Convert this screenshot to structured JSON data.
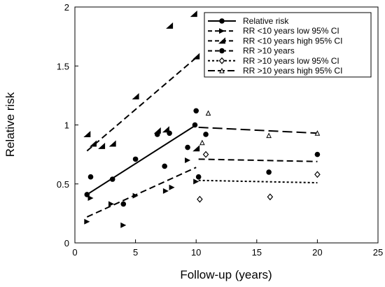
{
  "chart_data": {
    "type": "scatter",
    "xlabel": "Follow-up (years)",
    "ylabel": "Relative risk",
    "xlim": [
      0,
      25
    ],
    "ylim": [
      0,
      2
    ],
    "xticks": [
      "0",
      "5",
      "10",
      "15",
      "20",
      "25"
    ],
    "yticks": [
      "0",
      "0.5",
      "1",
      "1.5",
      "2"
    ],
    "legend_position": "top-right",
    "series": [
      {
        "name": "Relative risk",
        "marker": "circle",
        "line": "solid",
        "points": [
          [
            1,
            0.41
          ],
          [
            1.3,
            0.56
          ],
          [
            3.1,
            0.54
          ],
          [
            4,
            0.33
          ],
          [
            5,
            0.71
          ],
          [
            6.8,
            0.92
          ],
          [
            7.4,
            0.65
          ],
          [
            7.8,
            0.93
          ],
          [
            9.3,
            0.81
          ],
          [
            9.9,
            1.0
          ],
          [
            10,
            1.12
          ],
          [
            10.2,
            0.56
          ],
          [
            10.8,
            0.92
          ]
        ],
        "fit": [
          [
            1,
            0.41
          ],
          [
            10,
            1.0
          ]
        ]
      },
      {
        "name": "RR <10 years low 95% CI",
        "marker": "flag",
        "line": "dashed",
        "points": [
          [
            1,
            0.18
          ],
          [
            1.3,
            0.38
          ],
          [
            3,
            0.33
          ],
          [
            4,
            0.15
          ],
          [
            5,
            0.4
          ],
          [
            7.5,
            0.44
          ],
          [
            8,
            0.47
          ],
          [
            9.3,
            0.7
          ],
          [
            10,
            0.52
          ]
        ],
        "fit": [
          [
            1,
            0.22
          ],
          [
            10,
            0.64
          ]
        ]
      },
      {
        "name": "RR <10 years high 95% CI",
        "marker": "triangle",
        "line": "dashed",
        "points": [
          [
            1,
            0.92
          ],
          [
            1.5,
            0.84
          ],
          [
            2.2,
            0.82
          ],
          [
            3.1,
            0.84
          ],
          [
            5,
            1.24
          ],
          [
            6.8,
            0.95
          ],
          [
            7.5,
            0.96
          ],
          [
            7.8,
            1.84
          ],
          [
            9.8,
            1.94
          ],
          [
            10,
            1.58
          ],
          [
            10,
            0.8
          ]
        ],
        "fit": [
          [
            1,
            0.78
          ],
          [
            10,
            1.57
          ]
        ]
      },
      {
        "name": "RR >10 years",
        "marker": "circle",
        "line": "dashed",
        "points": [
          [
            16,
            0.6
          ],
          [
            20,
            0.75
          ]
        ],
        "fit": [
          [
            10.2,
            0.71
          ],
          [
            20,
            0.69
          ]
        ]
      },
      {
        "name": "RR >10 years low 95% CI",
        "marker": "diamond",
        "line": "dotted",
        "points": [
          [
            10.3,
            0.37
          ],
          [
            10.8,
            0.75
          ],
          [
            16.1,
            0.39
          ],
          [
            20,
            0.58
          ]
        ],
        "fit": [
          [
            10.2,
            0.53
          ],
          [
            20,
            0.51
          ]
        ]
      },
      {
        "name": "RR >10 years high 95% CI",
        "marker": "small-triangle",
        "line": "longdash",
        "points": [
          [
            10.5,
            0.85
          ],
          [
            11,
            1.1
          ],
          [
            16,
            0.91
          ],
          [
            20,
            0.93
          ]
        ],
        "fit": [
          [
            10.2,
            0.98
          ],
          [
            20,
            0.93
          ]
        ]
      }
    ]
  }
}
